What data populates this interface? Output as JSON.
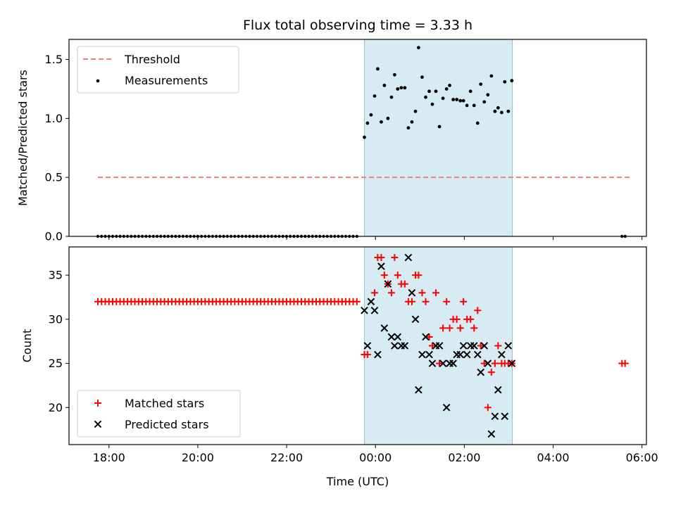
{
  "chart_data": [
    {
      "type": "scatter",
      "title": "Flux total observing time = 3.33 h",
      "ylabel": "Matched/Predicted stars",
      "xlabel": "",
      "x_unit": "hours since 00:00 UTC",
      "xlim": [
        -6.9,
        6.1
      ],
      "ylim": [
        0,
        1.67
      ],
      "yticks": [
        0.0,
        0.5,
        1.0,
        1.5
      ],
      "ytick_labels": [
        "0.0",
        "0.5",
        "1.0",
        "1.5"
      ],
      "shaded_region": [
        -0.25,
        3.08
      ],
      "shade_color": "#add8e6",
      "legend": {
        "placement": "upper-left",
        "entries": [
          {
            "label": "Threshold",
            "marker": "dashed-line",
            "color": "#f08080"
          },
          {
            "label": "Measurements",
            "marker": "dot",
            "color": "#000000"
          }
        ]
      },
      "threshold": {
        "name": "Threshold",
        "y": 0.5,
        "x_start": -6.25,
        "x_end": 5.75,
        "color": "#f08080"
      },
      "measurements_zero": {
        "x_start": -6.25,
        "x_end": -0.4,
        "step": 0.0833,
        "y": 0,
        "extra_x": [
          5.55,
          5.62
        ]
      },
      "measurements": {
        "name": "Measurements",
        "color": "#000000",
        "x": [
          -0.25,
          -0.18,
          -0.1,
          -0.02,
          0.05,
          0.13,
          0.2,
          0.28,
          0.36,
          0.43,
          0.5,
          0.58,
          0.66,
          0.74,
          0.82,
          0.9,
          0.97,
          1.05,
          1.13,
          1.21,
          1.28,
          1.36,
          1.44,
          1.52,
          1.6,
          1.67,
          1.75,
          1.83,
          1.91,
          1.98,
          2.06,
          2.14,
          2.22,
          2.3,
          2.37,
          2.45,
          2.53,
          2.61,
          2.69,
          2.76,
          2.84,
          2.91,
          2.99,
          3.07
        ],
        "y": [
          0.84,
          0.96,
          1.03,
          1.19,
          1.42,
          0.97,
          1.28,
          1.0,
          1.18,
          1.37,
          1.25,
          1.26,
          1.26,
          0.92,
          0.97,
          1.06,
          1.6,
          1.35,
          1.18,
          1.23,
          1.12,
          1.23,
          0.93,
          1.17,
          1.25,
          1.28,
          1.16,
          1.16,
          1.15,
          1.15,
          1.11,
          1.23,
          1.11,
          0.96,
          1.29,
          1.14,
          1.2,
          1.36,
          1.06,
          1.09,
          1.05,
          1.31,
          1.06,
          1.32
        ]
      }
    },
    {
      "type": "scatter",
      "ylabel": "Count",
      "xlabel": "Time (UTC)",
      "xlim": [
        -6.9,
        6.1
      ],
      "ylim": [
        15.8,
        38.2
      ],
      "yticks": [
        20,
        25,
        30,
        35
      ],
      "ytick_labels": [
        "20",
        "25",
        "30",
        "35"
      ],
      "xticks": [
        -6,
        -4,
        -2,
        0,
        2,
        4,
        6
      ],
      "xtick_labels": [
        "18:00",
        "20:00",
        "22:00",
        "00:00",
        "02:00",
        "04:00",
        "06:00"
      ],
      "shaded_region": [
        -0.25,
        3.08
      ],
      "shade_color": "#add8e6",
      "legend": {
        "placement": "lower-left",
        "entries": [
          {
            "label": "Matched stars",
            "marker": "plus",
            "color": "#ff0000"
          },
          {
            "label": "Predicted stars",
            "marker": "x",
            "color": "#000000"
          }
        ]
      },
      "matched_constant": {
        "x_start": -6.25,
        "x_end": -0.4,
        "step": 0.0833,
        "y": 32
      },
      "series": [
        {
          "name": "Matched stars",
          "marker": "plus",
          "color": "#ff0000",
          "x": [
            -0.25,
            -0.18,
            -0.02,
            0.05,
            0.13,
            0.2,
            0.28,
            0.36,
            0.43,
            0.5,
            0.58,
            0.66,
            0.74,
            0.82,
            0.9,
            0.97,
            1.05,
            1.13,
            1.21,
            1.28,
            1.36,
            1.44,
            1.52,
            1.6,
            1.67,
            1.75,
            1.83,
            1.91,
            1.98,
            2.06,
            2.14,
            2.22,
            2.3,
            2.37,
            2.45,
            2.53,
            2.61,
            2.69,
            2.76,
            2.84,
            2.91,
            2.99,
            3.07,
            5.55,
            5.62
          ],
          "y": [
            26,
            26,
            33,
            37,
            37,
            35,
            34,
            33,
            37,
            35,
            34,
            34,
            32,
            32,
            35,
            35,
            33,
            32,
            28,
            27,
            33,
            25,
            29,
            32,
            29,
            30,
            30,
            29,
            32,
            30,
            30,
            29,
            31,
            27,
            25,
            20,
            24,
            25,
            27,
            25,
            25,
            25,
            25,
            25,
            25
          ]
        },
        {
          "name": "Predicted stars",
          "marker": "x",
          "color": "#000000",
          "x": [
            -0.25,
            -0.18,
            -0.1,
            -0.02,
            0.05,
            0.13,
            0.2,
            0.28,
            0.36,
            0.43,
            0.5,
            0.58,
            0.66,
            0.74,
            0.82,
            0.9,
            0.97,
            1.05,
            1.13,
            1.21,
            1.28,
            1.36,
            1.44,
            1.52,
            1.6,
            1.67,
            1.75,
            1.83,
            1.91,
            1.98,
            2.06,
            2.14,
            2.22,
            2.3,
            2.37,
            2.45,
            2.53,
            2.61,
            2.69,
            2.76,
            2.84,
            2.91,
            2.99,
            3.07
          ],
          "y": [
            31,
            27,
            32,
            31,
            26,
            36,
            29,
            34,
            28,
            27,
            28,
            27,
            27,
            37,
            33,
            30,
            22,
            26,
            28,
            26,
            25,
            27,
            27,
            25,
            20,
            25,
            25,
            26,
            26,
            27,
            26,
            27,
            27,
            26,
            24,
            27,
            25,
            17,
            19,
            22,
            26,
            19,
            27,
            25
          ]
        }
      ]
    }
  ]
}
